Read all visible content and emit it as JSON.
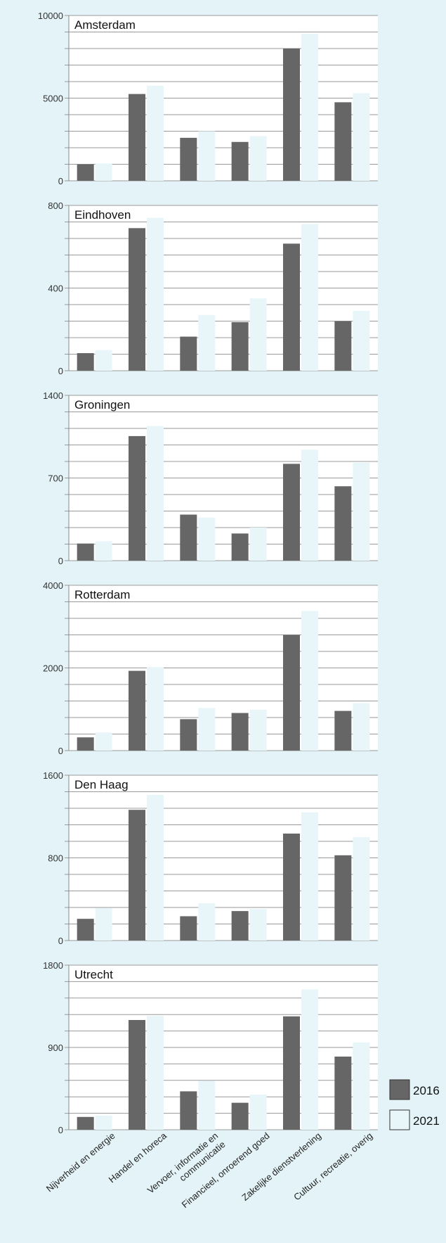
{
  "chart_data": {
    "type": "bar",
    "categories": [
      "Nijverheid en energie",
      "Handel en horeca",
      "Vervoer, informatie en communicatie",
      "Financieel, onroerend goed",
      "Zakelijke dienstverlening",
      "Cultuur, recreatie, overig"
    ],
    "legend": [
      {
        "label": "2016",
        "color": "#666666"
      },
      {
        "label": "2021",
        "color": "#e8f6fa"
      }
    ],
    "legend_position": "right",
    "grid": true,
    "panels": [
      {
        "title": "Amsterdam",
        "ylim": [
          0,
          10000
        ],
        "yticks": [
          "0",
          "5000",
          "10000"
        ],
        "series": [
          {
            "name": "2016",
            "values": [
              1000,
              5250,
              2600,
              2350,
              8000,
              4750
            ]
          },
          {
            "name": "2021",
            "values": [
              1050,
              5750,
              3000,
              2700,
              8900,
              5300
            ]
          }
        ]
      },
      {
        "title": "Eindhoven",
        "ylim": [
          0,
          800
        ],
        "yticks": [
          "0",
          "400",
          "800"
        ],
        "series": [
          {
            "name": "2016",
            "values": [
              85,
              690,
              165,
              235,
              615,
              240
            ]
          },
          {
            "name": "2021",
            "values": [
              100,
              740,
              270,
              350,
              710,
              290
            ]
          }
        ]
      },
      {
        "title": "Groningen",
        "ylim": [
          0,
          1400
        ],
        "yticks": [
          "0",
          "700",
          "1400"
        ],
        "series": [
          {
            "name": "2016",
            "values": [
              145,
              1055,
              390,
              230,
              820,
              630
            ]
          },
          {
            "name": "2021",
            "values": [
              165,
              1140,
              365,
              280,
              940,
              830
            ]
          }
        ]
      },
      {
        "title": "Rotterdam",
        "ylim": [
          0,
          4000
        ],
        "yticks": [
          "0",
          "2000",
          "4000"
        ],
        "series": [
          {
            "name": "2016",
            "values": [
              320,
              1930,
              760,
              910,
              2800,
              960
            ]
          },
          {
            "name": "2021",
            "values": [
              440,
              2020,
              1030,
              990,
              3380,
              1150
            ]
          }
        ]
      },
      {
        "title": "Den Haag",
        "ylim": [
          0,
          1600
        ],
        "yticks": [
          "0",
          "800",
          "1600"
        ],
        "series": [
          {
            "name": "2016",
            "values": [
              210,
              1265,
              235,
              285,
              1035,
              825
            ]
          },
          {
            "name": "2021",
            "values": [
              315,
              1410,
              360,
              305,
              1240,
              1000
            ]
          }
        ]
      },
      {
        "title": "Utrecht",
        "ylim": [
          0,
          1800
        ],
        "yticks": [
          "0",
          "900",
          "1800"
        ],
        "series": [
          {
            "name": "2016",
            "values": [
              140,
              1200,
              420,
              295,
              1240,
              800
            ]
          },
          {
            "name": "2021",
            "values": [
              155,
              1245,
              535,
              385,
              1535,
              955
            ]
          }
        ]
      }
    ]
  }
}
